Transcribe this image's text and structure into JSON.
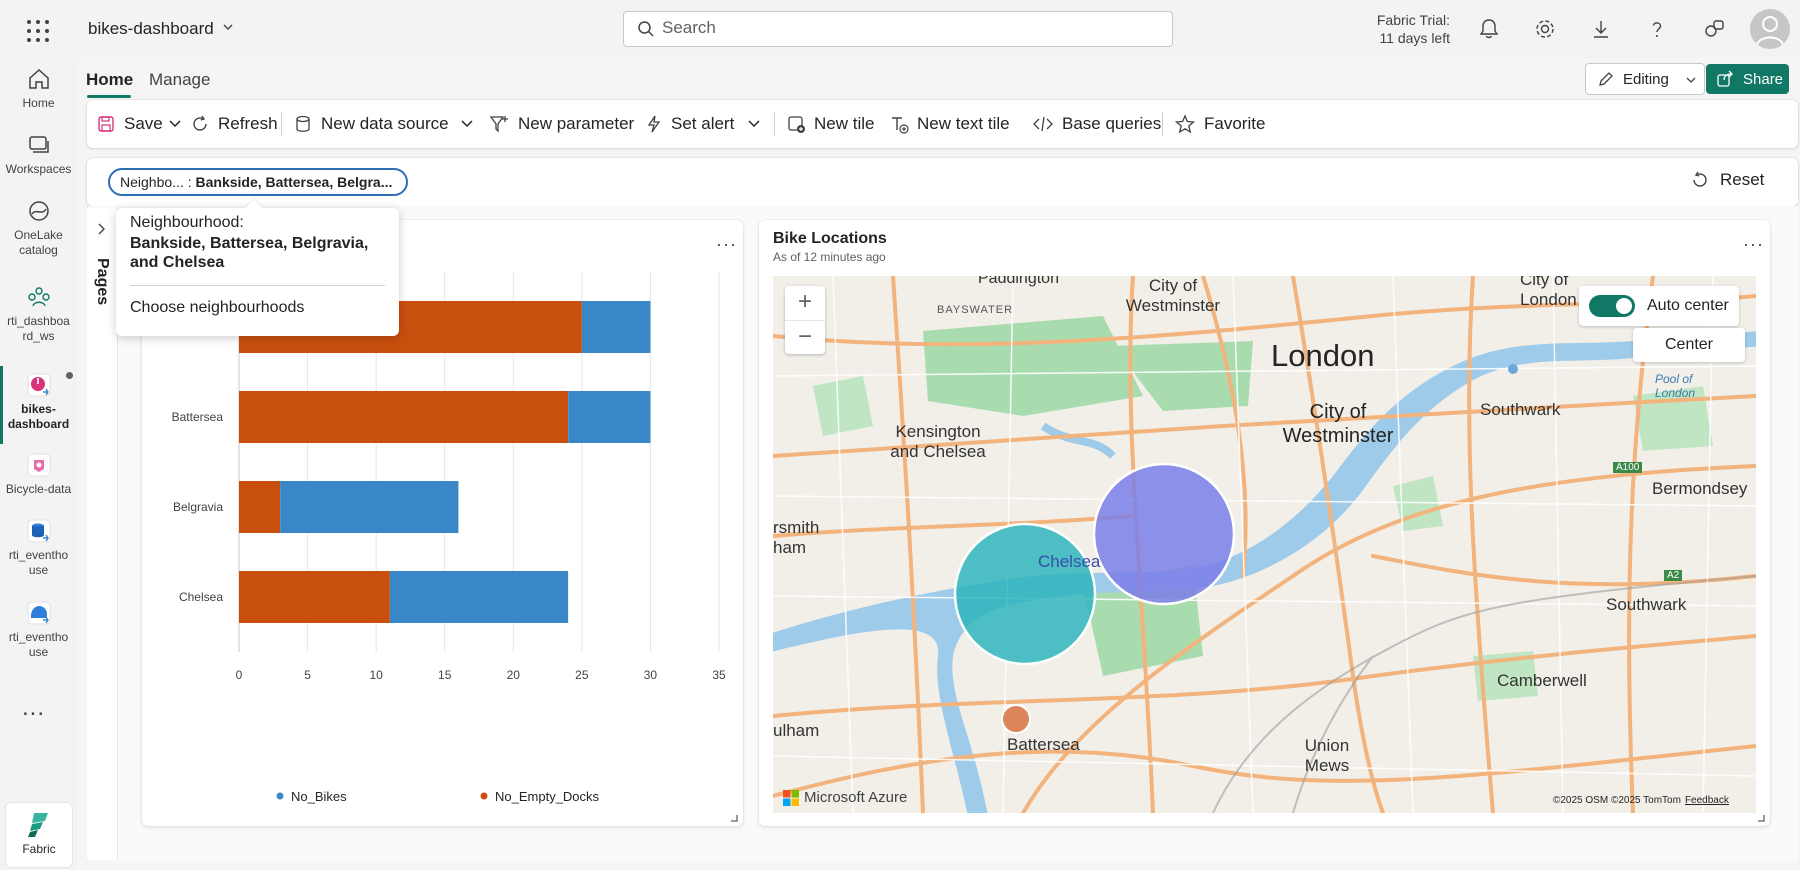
{
  "topbar": {
    "workspace_name": "bikes-dashboard",
    "search_placeholder": "Search",
    "trial_line1": "Fabric Trial:",
    "trial_line2": "11 days left"
  },
  "nav": {
    "items": [
      {
        "label": "Home"
      },
      {
        "label": "Workspaces"
      },
      {
        "label": "OneLake catalog"
      },
      {
        "label": "rti_dashboard_ws"
      },
      {
        "label": "bikes-dashboard"
      },
      {
        "label": "Bicycle-data"
      },
      {
        "label": "rti_eventhouse"
      },
      {
        "label": "rti_eventhouse"
      }
    ],
    "more": "...",
    "fabric_label": "Fabric"
  },
  "tabs": {
    "home": "Home",
    "manage": "Manage"
  },
  "editing_label": "Editing",
  "share_label": "Share",
  "toolbar": {
    "save": "Save",
    "refresh": "Refresh",
    "new_data_source": "New data source",
    "new_parameter": "New parameter",
    "set_alert": "Set alert",
    "new_tile": "New tile",
    "new_text_tile": "New text tile",
    "base_queries": "Base queries",
    "favorite": "Favorite"
  },
  "filter": {
    "pill_name": "Neighbo...",
    "pill_value": "Bankside, Battersea, Belgra...",
    "reset": "Reset"
  },
  "pages_label": "Pages",
  "tooltip": {
    "label": "Neighbourhood:",
    "value": "Bankside, Battersea, Belgravia, and Chelsea",
    "choose": "Choose neighbourhoods"
  },
  "chart_data": {
    "type": "bar",
    "orientation": "horizontal",
    "stacked": true,
    "categories": [
      "Bankside",
      "Battersea",
      "Belgravia",
      "Chelsea"
    ],
    "series": [
      {
        "name": "No_Empty_Docks",
        "color": "#c94f0f",
        "values": [
          25,
          24,
          3,
          11
        ]
      },
      {
        "name": "No_Bikes",
        "color": "#3a87c8",
        "values": [
          5,
          6,
          13,
          13
        ]
      }
    ],
    "legend_order": [
      "No_Bikes",
      "No_Empty_Docks"
    ],
    "xlim": [
      0,
      35
    ],
    "xticks": [
      0,
      5,
      10,
      15,
      20,
      25,
      30,
      35
    ],
    "grid": true,
    "legend_position": "bottom"
  },
  "map": {
    "title": "Bike Locations",
    "subtitle": "As of 12 minutes ago",
    "zoom_in": "+",
    "zoom_out": "−",
    "auto_center_label": "Auto center",
    "center_label": "Center",
    "provider": "Microsoft Azure",
    "credits": "©2025 OSM  ©2025 TomTom",
    "feedback": "Feedback",
    "places": [
      {
        "name": "Paddington"
      },
      {
        "name": "City of Westminster"
      },
      {
        "name": "City of London"
      },
      {
        "name": "BAYSWATER"
      },
      {
        "name": "London"
      },
      {
        "name": "Pool of London"
      },
      {
        "name": "Southwark"
      },
      {
        "name": "Kensington and Chelsea"
      },
      {
        "name": "City of Westminster"
      },
      {
        "name": "A100"
      },
      {
        "name": "Bermondsey"
      },
      {
        "name": "rsmith ham"
      },
      {
        "name": "Chelsea"
      },
      {
        "name": "A2"
      },
      {
        "name": "Southwark"
      },
      {
        "name": "Camberwell"
      },
      {
        "name": "ulham"
      },
      {
        "name": "Battersea"
      },
      {
        "name": "Union Mews"
      }
    ],
    "bubble_colors": {
      "purple": "#7b7fe8",
      "teal": "#2fb5bd",
      "orange": "#d9794a"
    }
  }
}
